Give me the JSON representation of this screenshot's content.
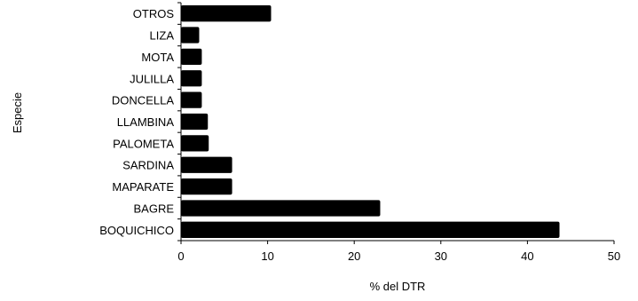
{
  "chart_data": {
    "type": "bar",
    "orientation": "horizontal",
    "title": "",
    "xlabel": "% del DTR",
    "ylabel": "Especie",
    "xlim": [
      0,
      50
    ],
    "x_ticks": [
      0,
      10,
      20,
      30,
      40,
      50
    ],
    "grid": false,
    "legend": "none",
    "bar_color": "#000000",
    "categories": [
      "OTROS",
      "LIZA",
      "MOTA",
      "JULILLA",
      "DONCELLA",
      "LLAMBINA",
      "PALOMETA",
      "SARDINA",
      "MAPARATE",
      "BAGRE",
      "BOQUICHICO"
    ],
    "values": [
      10.4,
      2.1,
      2.4,
      2.4,
      2.4,
      3.1,
      3.2,
      5.9,
      5.9,
      23.0,
      43.7
    ]
  }
}
